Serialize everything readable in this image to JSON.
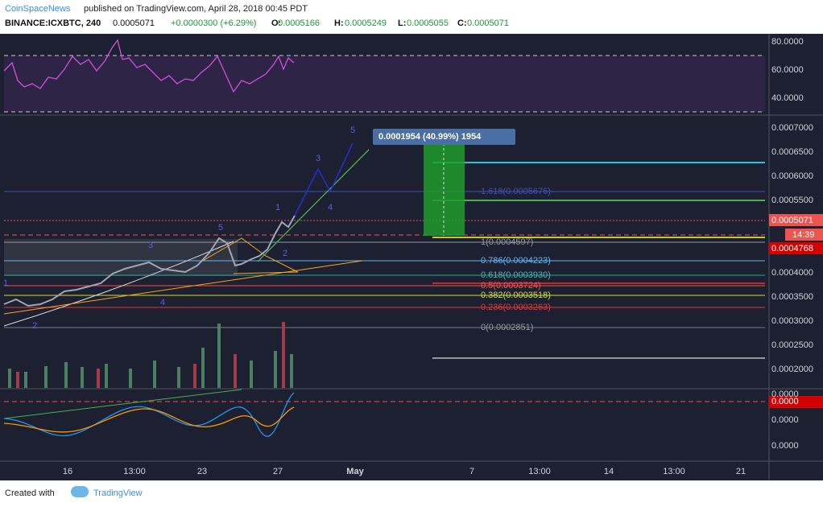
{
  "header": {
    "author": "CoinSpaceNews",
    "published": "published on TradingView.com, April 28, 2018 00:45 PDT",
    "symbol": "BINANCE:ICXBTC, 240",
    "last": "0.0005071",
    "change": "+0.0000300 (+6.29%)",
    "ohlc": [
      {
        "key": "O:",
        "value": "0.0005166"
      },
      {
        "key": "H:",
        "value": "0.0005249"
      },
      {
        "key": "L:",
        "value": "0.0005055"
      },
      {
        "key": "C:",
        "value": "0.0005071"
      }
    ]
  },
  "rsi_axis": [
    "80.0000",
    "60.0000",
    "40.0000"
  ],
  "price_axis": [
    "0.0007000",
    "0.0006500",
    "0.0006000",
    "0.0005500",
    "0.0004000",
    "0.0003500",
    "0.0003000",
    "0.0002500",
    "0.0002000"
  ],
  "price_badges": {
    "last": "0.0005071",
    "countdown": "14:39",
    "level": "0.0004768"
  },
  "oscillator_axis": [
    "0.0000",
    "0.0000",
    "0.0000"
  ],
  "oscillator_badge": "0.0000",
  "time_axis": [
    "16",
    "13:00",
    "23",
    "27",
    "May",
    "7",
    "13:00",
    "14",
    "13:00",
    "21"
  ],
  "fib_levels": [
    "1.618(0.0005676)",
    "1(0.0004597)",
    "0.786(0.0004223)",
    "0.618(0.0003930)",
    "0.5(0.0003724)",
    "0.382(0.0003518)",
    "0.236(0.0003263)",
    "0(0.0002851)"
  ],
  "measure": "0.0001954 (40.99%) 1954",
  "wave_labels": [
    "1",
    "2",
    "3",
    "4",
    "5",
    "1",
    "2",
    "3",
    "4",
    "5"
  ],
  "footer": {
    "created": "Created with",
    "brand": "TradingView"
  }
}
